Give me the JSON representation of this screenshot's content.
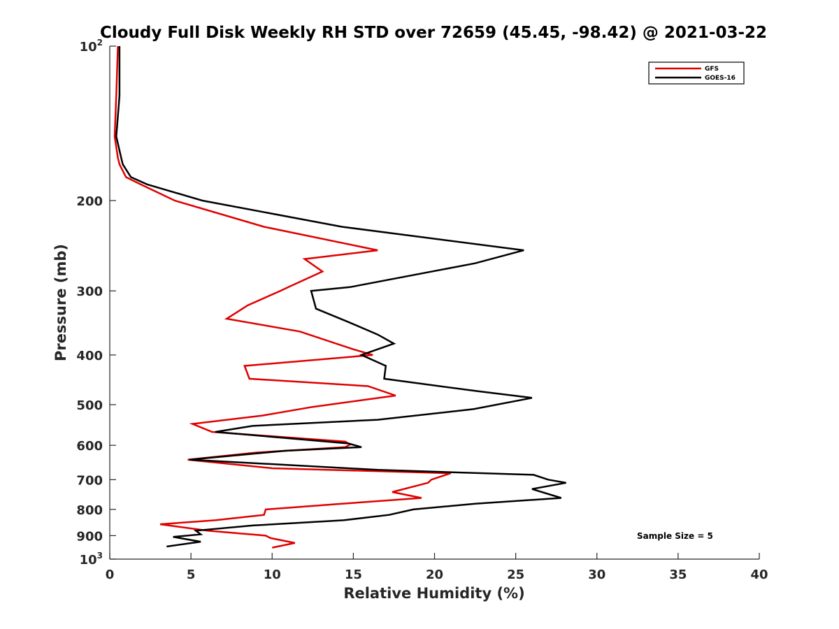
{
  "chart_data": {
    "type": "line",
    "title": "Cloudy Full Disk Weekly RH STD over 72659 (45.45, -98.42) @ 2021-03-22",
    "xlabel": "Relative Humidity (%)",
    "ylabel": "Pressure (mb)",
    "xlim": [
      0,
      40
    ],
    "ylim": [
      100,
      1000
    ],
    "yscale": "log",
    "yreversed": true,
    "xticks": [
      0,
      5,
      10,
      15,
      20,
      25,
      30,
      35,
      40
    ],
    "xtick_labels": [
      "0",
      "5",
      "10",
      "15",
      "20",
      "25",
      "30",
      "35",
      "40"
    ],
    "yticks": [
      {
        "value": 100,
        "base": "10",
        "sup": "2"
      },
      {
        "value": 200,
        "base": "200",
        "sup": ""
      },
      {
        "value": 300,
        "base": "300",
        "sup": ""
      },
      {
        "value": 400,
        "base": "400",
        "sup": ""
      },
      {
        "value": 500,
        "base": "500",
        "sup": ""
      },
      {
        "value": 600,
        "base": "600",
        "sup": ""
      },
      {
        "value": 700,
        "base": "700",
        "sup": ""
      },
      {
        "value": 800,
        "base": "800",
        "sup": ""
      },
      {
        "value": 900,
        "base": "900",
        "sup": ""
      },
      {
        "value": 1000,
        "base": "10",
        "sup": "3"
      }
    ],
    "grid": false,
    "legend_position": "top-right",
    "annotation": "Sample Size = 5",
    "series": [
      {
        "name": "GFS",
        "color": "#e00000",
        "points": [
          [
            0.5,
            100
          ],
          [
            0.4,
            125
          ],
          [
            0.3,
            150
          ],
          [
            0.5,
            165
          ],
          [
            0.6,
            170
          ],
          [
            1.0,
            180
          ],
          [
            1.9,
            186
          ],
          [
            4.0,
            200
          ],
          [
            9.5,
            225
          ],
          [
            16.5,
            250
          ],
          [
            12.0,
            260
          ],
          [
            13.1,
            275
          ],
          [
            11.0,
            295
          ],
          [
            10.5,
            300
          ],
          [
            8.5,
            320
          ],
          [
            7.2,
            340
          ],
          [
            11.7,
            360
          ],
          [
            15.0,
            390
          ],
          [
            16.2,
            400
          ],
          [
            8.3,
            420
          ],
          [
            8.6,
            445
          ],
          [
            15.9,
            460
          ],
          [
            17.6,
            480
          ],
          [
            12.5,
            505
          ],
          [
            9.4,
            525
          ],
          [
            5.1,
            545
          ],
          [
            6.3,
            565
          ],
          [
            14.5,
            590
          ],
          [
            14.8,
            598
          ],
          [
            14.5,
            605
          ],
          [
            9.0,
            620
          ],
          [
            4.8,
            640
          ],
          [
            10.0,
            665
          ],
          [
            21.0,
            680
          ],
          [
            19.8,
            700
          ],
          [
            19.6,
            710
          ],
          [
            17.4,
            740
          ],
          [
            19.2,
            760
          ],
          [
            14.3,
            780
          ],
          [
            9.6,
            800
          ],
          [
            9.5,
            820
          ],
          [
            6.5,
            840
          ],
          [
            3.1,
            855
          ],
          [
            6.0,
            880
          ],
          [
            9.6,
            900
          ],
          [
            9.9,
            910
          ],
          [
            11.4,
            930
          ],
          [
            10.0,
            950
          ]
        ]
      },
      {
        "name": "GOES-16",
        "color": "#000000",
        "points": [
          [
            0.6,
            100
          ],
          [
            0.6,
            125
          ],
          [
            0.4,
            150
          ],
          [
            0.7,
            165
          ],
          [
            0.8,
            170
          ],
          [
            1.3,
            180
          ],
          [
            2.3,
            186
          ],
          [
            5.7,
            200
          ],
          [
            14.3,
            225
          ],
          [
            25.5,
            250
          ],
          [
            22.5,
            265
          ],
          [
            14.8,
            295
          ],
          [
            12.4,
            300
          ],
          [
            12.7,
            325
          ],
          [
            14.7,
            345
          ],
          [
            16.5,
            365
          ],
          [
            17.5,
            380
          ],
          [
            15.5,
            400
          ],
          [
            17.0,
            420
          ],
          [
            16.9,
            445
          ],
          [
            22.5,
            470
          ],
          [
            26.0,
            485
          ],
          [
            22.4,
            510
          ],
          [
            16.5,
            535
          ],
          [
            8.8,
            550
          ],
          [
            6.5,
            565
          ],
          [
            14.7,
            595
          ],
          [
            15.5,
            605
          ],
          [
            10.8,
            615
          ],
          [
            4.9,
            640
          ],
          [
            16.5,
            670
          ],
          [
            26.1,
            685
          ],
          [
            27.0,
            700
          ],
          [
            28.1,
            710
          ],
          [
            26.0,
            730
          ],
          [
            27.8,
            760
          ],
          [
            22.5,
            780
          ],
          [
            18.7,
            800
          ],
          [
            17.2,
            820
          ],
          [
            14.4,
            840
          ],
          [
            8.8,
            860
          ],
          [
            5.3,
            880
          ],
          [
            5.6,
            895
          ],
          [
            3.9,
            905
          ],
          [
            5.6,
            925
          ],
          [
            3.5,
            945
          ]
        ]
      }
    ]
  }
}
